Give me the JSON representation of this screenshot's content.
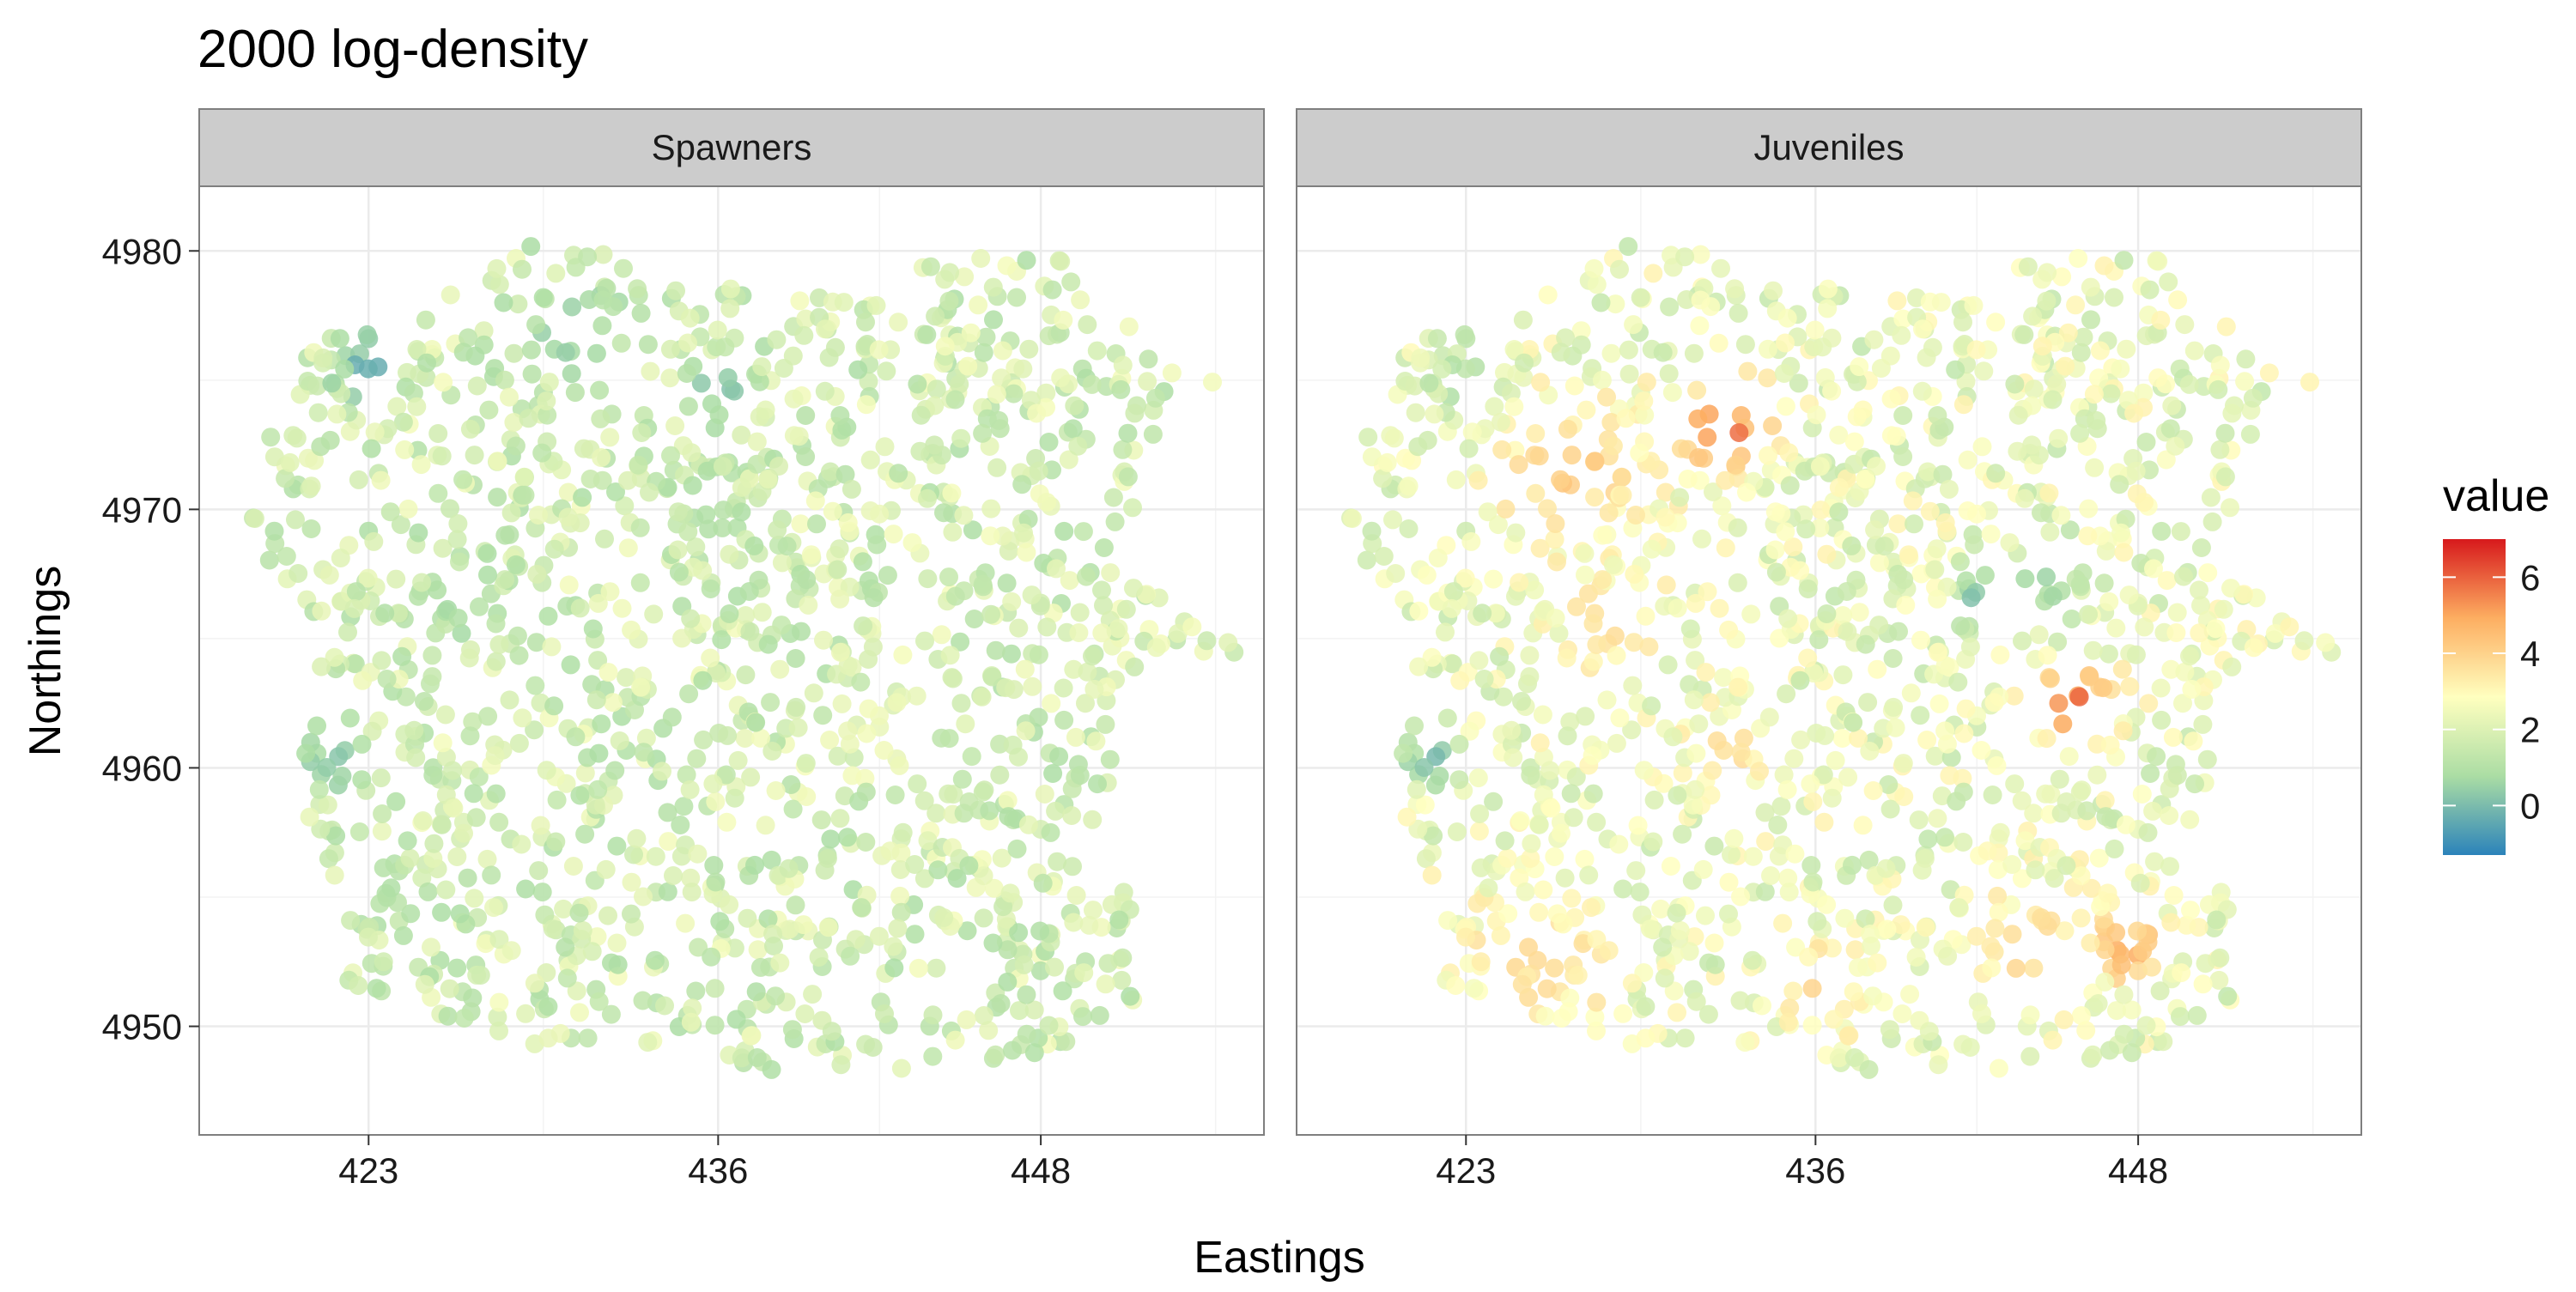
{
  "chart_data": {
    "type": "scatter",
    "title": "2000 log-density",
    "xlabel": "Eastings",
    "ylabel": "Northings",
    "x_ticks": [
      423,
      436,
      448
    ],
    "y_ticks": [
      4950,
      4960,
      4970,
      4980
    ],
    "xlim": [
      416.7,
      456.3
    ],
    "ylim": [
      4945.8,
      4982.5
    ],
    "grid": true,
    "legend": {
      "title": "value",
      "position": "right",
      "ticks": [
        0,
        2,
        4,
        6
      ],
      "range": [
        -1.3,
        7.0
      ],
      "palette": [
        "#2b83ba",
        "#abdda4",
        "#ffffbf",
        "#fdae61",
        "#d7191c"
      ]
    },
    "panels": [
      {
        "name": "Spawners",
        "points_per_area": 2.4,
        "base_range": [
          0.8,
          2.6
        ],
        "hotspots": [
          {
            "x": 423.0,
            "y": 4975.3,
            "value": -0.9,
            "radius": 1.2
          },
          {
            "x": 436.0,
            "y": 4974.6,
            "value": -0.2,
            "radius": 1.3
          },
          {
            "x": 430.8,
            "y": 4977.1,
            "value": 0.2,
            "radius": 2.0
          },
          {
            "x": 421.7,
            "y": 4960.3,
            "value": 0.1,
            "radius": 1.6
          },
          {
            "x": 426.5,
            "y": 4966.6,
            "value": 0.5,
            "radius": 1.8
          },
          {
            "x": 423.5,
            "y": 4955.3,
            "value": 0.9,
            "radius": 1.5
          },
          {
            "x": 435.8,
            "y": 4969.7,
            "value": 0.8,
            "radius": 1.5
          },
          {
            "x": 442.2,
            "y": 4961.3,
            "value": 2.6,
            "radius": 1.6
          }
        ]
      },
      {
        "name": "Juveniles",
        "points_per_area": 2.4,
        "base_range": [
          1.3,
          3.2
        ],
        "hotspots": [
          {
            "x": 432.6,
            "y": 4973.1,
            "value": 6.2,
            "radius": 1.8
          },
          {
            "x": 445.6,
            "y": 4962.4,
            "value": 6.4,
            "radius": 1.6
          },
          {
            "x": 447.6,
            "y": 4953.1,
            "value": 5.5,
            "radius": 1.4
          },
          {
            "x": 427.0,
            "y": 4971.5,
            "value": 4.4,
            "radius": 3.0
          },
          {
            "x": 428.5,
            "y": 4965.5,
            "value": 4.0,
            "radius": 2.0
          },
          {
            "x": 425.5,
            "y": 4952.4,
            "value": 4.0,
            "radius": 3.0
          },
          {
            "x": 433.0,
            "y": 4960.5,
            "value": 4.0,
            "radius": 1.8
          },
          {
            "x": 444.0,
            "y": 4953.0,
            "value": 4.0,
            "radius": 2.5
          },
          {
            "x": 436.2,
            "y": 4951.5,
            "value": 4.0,
            "radius": 2.0
          },
          {
            "x": 442.3,
            "y": 4966.1,
            "value": -0.9,
            "radius": 1.0
          },
          {
            "x": 444.0,
            "y": 4967.0,
            "value": 0.3,
            "radius": 1.8
          },
          {
            "x": 421.7,
            "y": 4960.3,
            "value": -0.3,
            "radius": 1.2
          },
          {
            "x": 423.0,
            "y": 4974.8,
            "value": 0.6,
            "radius": 1.5
          }
        ]
      }
    ]
  }
}
